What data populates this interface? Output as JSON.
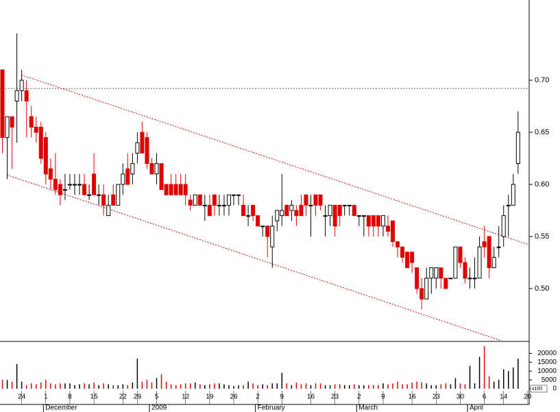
{
  "chart_data": [
    {
      "type": "candlestick",
      "xlim": [
        -0.5,
        109.3
      ],
      "ylim": [
        0.4493,
        0.777
      ],
      "yticks": [
        {
          "value": 0.5,
          "label": "0.50"
        },
        {
          "value": 0.55,
          "label": "0.55"
        },
        {
          "value": 0.6,
          "label": "0.60"
        },
        {
          "value": 0.65,
          "label": "0.65"
        },
        {
          "value": 0.7,
          "label": "0.70"
        }
      ],
      "up_color": "#ffffff",
      "down_color": "#e00000",
      "reference_line": 0.692,
      "trendlines": [
        {
          "color": "#d00000",
          "x": [
            4,
            109.3
          ],
          "y": [
            0.705,
            0.542
          ]
        },
        {
          "color": "#d00000",
          "x": [
            1,
            103.5
          ],
          "y": [
            0.609,
            0.45
          ]
        }
      ],
      "open": [
        0.71,
        0.645,
        0.665,
        0.68,
        0.69,
        0.69,
        0.665,
        0.655,
        0.655,
        0.645,
        0.615,
        0.605,
        0.6,
        0.595,
        0.6,
        0.6,
        0.6,
        0.6,
        0.59,
        0.61,
        0.59,
        0.59,
        0.57,
        0.59,
        0.58,
        0.6,
        0.615,
        0.61,
        0.63,
        0.65,
        0.645,
        0.62,
        0.61,
        0.62,
        0.6,
        0.6,
        0.6,
        0.6,
        0.6,
        0.585,
        0.58,
        0.59,
        0.58,
        0.58,
        0.59,
        0.58,
        0.58,
        0.58,
        0.59,
        0.59,
        0.58,
        0.57,
        0.58,
        0.57,
        0.56,
        0.56,
        0.54,
        0.565,
        0.57,
        0.58,
        0.575,
        0.575,
        0.58,
        0.59,
        0.58,
        0.59,
        0.59,
        0.57,
        0.57,
        0.58,
        0.58,
        0.58,
        0.58,
        0.58,
        0.57,
        0.57,
        0.57,
        0.57,
        0.57,
        0.56,
        0.56,
        0.565,
        0.545,
        0.54,
        0.535,
        0.535,
        0.52,
        0.5,
        0.49,
        0.51,
        0.51,
        0.52,
        0.51,
        0.51,
        0.51,
        0.54,
        0.525,
        0.51,
        0.51,
        0.51,
        0.545,
        0.55,
        0.52,
        0.54,
        0.55,
        0.58,
        0.58,
        0.62
      ],
      "high": [
        0.71,
        0.665,
        0.665,
        0.745,
        0.71,
        0.7,
        0.675,
        0.665,
        0.66,
        0.65,
        0.625,
        0.63,
        0.605,
        0.61,
        0.61,
        0.61,
        0.61,
        0.61,
        0.6,
        0.63,
        0.6,
        0.6,
        0.59,
        0.6,
        0.6,
        0.62,
        0.63,
        0.63,
        0.65,
        0.66,
        0.65,
        0.625,
        0.63,
        0.62,
        0.6,
        0.61,
        0.61,
        0.61,
        0.61,
        0.59,
        0.59,
        0.59,
        0.59,
        0.59,
        0.59,
        0.59,
        0.59,
        0.59,
        0.59,
        0.59,
        0.59,
        0.58,
        0.58,
        0.57,
        0.56,
        0.56,
        0.57,
        0.575,
        0.61,
        0.58,
        0.585,
        0.58,
        0.59,
        0.59,
        0.59,
        0.59,
        0.59,
        0.58,
        0.58,
        0.58,
        0.58,
        0.58,
        0.58,
        0.58,
        0.57,
        0.57,
        0.57,
        0.57,
        0.57,
        0.57,
        0.57,
        0.565,
        0.545,
        0.54,
        0.535,
        0.535,
        0.52,
        0.51,
        0.52,
        0.52,
        0.52,
        0.52,
        0.51,
        0.51,
        0.54,
        0.54,
        0.53,
        0.52,
        0.53,
        0.55,
        0.56,
        0.55,
        0.54,
        0.56,
        0.58,
        0.59,
        0.61,
        0.67
      ],
      "low": [
        0.63,
        0.605,
        0.615,
        0.64,
        0.68,
        0.645,
        0.645,
        0.64,
        0.62,
        0.6,
        0.595,
        0.59,
        0.58,
        0.585,
        0.595,
        0.59,
        0.59,
        0.59,
        0.585,
        0.59,
        0.58,
        0.57,
        0.57,
        0.58,
        0.58,
        0.59,
        0.6,
        0.6,
        0.62,
        0.63,
        0.615,
        0.61,
        0.6,
        0.595,
        0.59,
        0.59,
        0.59,
        0.59,
        0.58,
        0.575,
        0.58,
        0.58,
        0.565,
        0.57,
        0.57,
        0.57,
        0.57,
        0.57,
        0.58,
        0.58,
        0.57,
        0.56,
        0.565,
        0.56,
        0.55,
        0.53,
        0.52,
        0.555,
        0.56,
        0.57,
        0.565,
        0.56,
        0.57,
        0.57,
        0.55,
        0.57,
        0.575,
        0.55,
        0.56,
        0.55,
        0.56,
        0.57,
        0.57,
        0.57,
        0.56,
        0.55,
        0.55,
        0.55,
        0.55,
        0.55,
        0.55,
        0.54,
        0.53,
        0.525,
        0.52,
        0.515,
        0.495,
        0.48,
        0.49,
        0.495,
        0.5,
        0.5,
        0.5,
        0.51,
        0.51,
        0.52,
        0.505,
        0.5,
        0.5,
        0.51,
        0.53,
        0.51,
        0.52,
        0.53,
        0.54,
        0.55,
        0.58,
        0.61
      ],
      "close": [
        0.645,
        0.665,
        0.655,
        0.69,
        0.7,
        0.68,
        0.655,
        0.65,
        0.625,
        0.61,
        0.605,
        0.595,
        0.59,
        0.595,
        0.6,
        0.6,
        0.6,
        0.59,
        0.59,
        0.59,
        0.59,
        0.58,
        0.58,
        0.58,
        0.6,
        0.61,
        0.6,
        0.62,
        0.64,
        0.63,
        0.62,
        0.61,
        0.62,
        0.595,
        0.59,
        0.59,
        0.59,
        0.59,
        0.59,
        0.58,
        0.59,
        0.58,
        0.58,
        0.57,
        0.58,
        0.58,
        0.58,
        0.59,
        0.59,
        0.59,
        0.57,
        0.57,
        0.57,
        0.56,
        0.56,
        0.55,
        0.56,
        0.575,
        0.575,
        0.57,
        0.58,
        0.57,
        0.57,
        0.58,
        0.58,
        0.58,
        0.58,
        0.57,
        0.58,
        0.56,
        0.57,
        0.58,
        0.58,
        0.57,
        0.57,
        0.57,
        0.56,
        0.56,
        0.56,
        0.57,
        0.555,
        0.545,
        0.54,
        0.53,
        0.52,
        0.525,
        0.5,
        0.49,
        0.51,
        0.52,
        0.52,
        0.51,
        0.5,
        0.51,
        0.54,
        0.525,
        0.51,
        0.51,
        0.51,
        0.54,
        0.54,
        0.52,
        0.53,
        0.54,
        0.57,
        0.58,
        0.6,
        0.65
      ]
    },
    {
      "type": "bar",
      "volume_unit": "x100",
      "xlim": [
        -0.5,
        109.3
      ],
      "ylim": [
        0,
        26000
      ],
      "yticks": [
        0,
        5000,
        10000,
        15000,
        20000
      ],
      "up_color": "#000000",
      "down_color": "#e00000",
      "values": [
        5000,
        5000,
        4000,
        14000,
        4000,
        2000,
        3000,
        2500,
        3500,
        5000,
        3000,
        2500,
        3000,
        3000,
        3000,
        2000,
        2500,
        3000,
        2500,
        3500,
        2000,
        3000,
        2500,
        2000,
        2000,
        2500,
        2000,
        3500,
        17000,
        4000,
        5000,
        3500,
        6000,
        8000,
        4000,
        2500,
        2000,
        2500,
        3000,
        3000,
        3500,
        2500,
        2000,
        2500,
        3000,
        3000,
        2500,
        2000,
        1500,
        2000,
        2000,
        4000,
        3000,
        2000,
        2500,
        2000,
        3000,
        3000,
        9000,
        3000,
        2000,
        3500,
        2500,
        3000,
        2000,
        3000,
        3000,
        2000,
        2000,
        2500,
        2500,
        2000,
        2000,
        2500,
        2000,
        2000,
        2000,
        2000,
        2000,
        3000,
        2500,
        3000,
        4000,
        2500,
        2500,
        3500,
        4000,
        3500,
        3000,
        2000,
        2000,
        2500,
        3000,
        2500,
        6000,
        3000,
        2500,
        13000,
        3000,
        18000,
        24000,
        7000,
        4000,
        5000,
        11000,
        10000,
        12000,
        17000
      ],
      "xticks": [
        {
          "value": 4,
          "label": "24"
        },
        {
          "value": 9,
          "label": "1"
        },
        {
          "value": 14,
          "label": "8"
        },
        {
          "value": 19,
          "label": "15"
        },
        {
          "value": 25,
          "label": "22"
        },
        {
          "value": 28,
          "label": "29"
        },
        {
          "value": 32,
          "label": "5"
        },
        {
          "value": 38,
          "label": "12"
        },
        {
          "value": 43,
          "label": "19"
        },
        {
          "value": 48,
          "label": "26"
        },
        {
          "value": 53,
          "label": "2"
        },
        {
          "value": 58,
          "label": "9"
        },
        {
          "value": 64,
          "label": "16"
        },
        {
          "value": 69,
          "label": "23"
        },
        {
          "value": 74,
          "label": "2"
        },
        {
          "value": 79,
          "label": "9"
        },
        {
          "value": 85,
          "label": "16"
        },
        {
          "value": 90,
          "label": "23"
        },
        {
          "value": 95,
          "label": "30"
        },
        {
          "value": 100,
          "label": "6"
        },
        {
          "value": 104,
          "label": "14"
        },
        {
          "value": 109,
          "label": "20"
        }
      ],
      "month_labels": [
        {
          "value": 8.5,
          "label": "December"
        },
        {
          "value": 30.5,
          "label": "2009"
        },
        {
          "value": 52.5,
          "label": "February"
        },
        {
          "value": 73.5,
          "label": "March"
        },
        {
          "value": 96.5,
          "label": "April"
        }
      ]
    }
  ]
}
